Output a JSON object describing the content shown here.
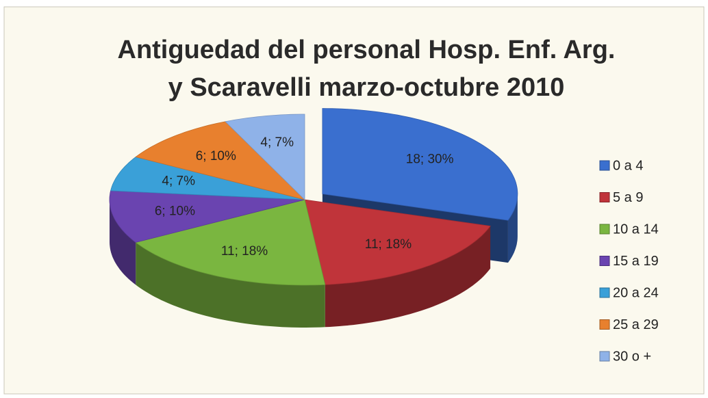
{
  "chart_data": {
    "type": "pie3d",
    "title": [
      "Antiguedad del personal Hosp. Enf. Arg.",
      "y Scaravelli marzo-octubre 2010"
    ],
    "categories": [
      "0 a 4",
      "5 a 9",
      "10 a 14",
      "15 a 19",
      "20 a 24",
      "25 a 29",
      "30 o +"
    ],
    "values": [
      18,
      11,
      11,
      6,
      4,
      6,
      4
    ],
    "value_labels": [
      "18; 30%",
      "11; 18%",
      "11; 18%",
      "6; 10%",
      "4; 7%",
      "6; 10%",
      "4; 7%"
    ],
    "colors": [
      "#3a6fcf",
      "#c0343a",
      "#7ab640",
      "#6a44b0",
      "#3aa0d8",
      "#e8802e",
      "#8fb2e8"
    ],
    "exploded": [
      0
    ],
    "legend": "right"
  }
}
